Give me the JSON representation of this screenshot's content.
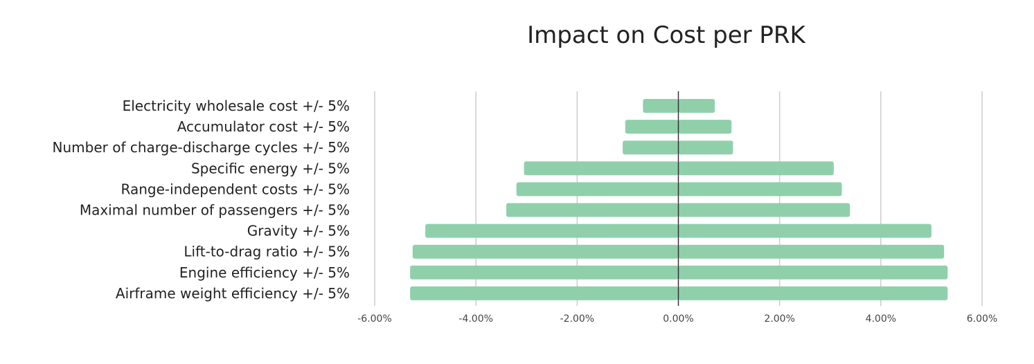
{
  "chart_data": {
    "type": "bar",
    "orientation": "horizontal",
    "title": "Impact on Cost per PRK",
    "xlabel": "",
    "ylabel": "",
    "xlim": [
      -6,
      6
    ],
    "x_ticks": [
      -6,
      -4,
      -2,
      0,
      2,
      4,
      6
    ],
    "x_tick_labels": [
      "-6.00%",
      "-4.00%",
      "-2.00%",
      "0.00%",
      "2.00%",
      "4.00%",
      "6.00%"
    ],
    "grid": true,
    "legend": "none",
    "categories": [
      "Electricity wholesale cost +/- 5%",
      "Accumulator cost +/- 5%",
      "Number of charge-discharge cycles +/- 5%",
      "Specific energy +/- 5%",
      "Range-independent costs +/- 5%",
      "Maximal number of passengers +/- 5%",
      "Gravity +/- 5%",
      "Lift-to-drag ratio +/- 5%",
      "Engine efficiency +/- 5%",
      "Airframe weight efficiency +/- 5%"
    ],
    "series": [
      {
        "name": "Low",
        "values": [
          -0.7,
          -1.05,
          -1.1,
          -3.05,
          -3.2,
          -3.4,
          -5.0,
          -5.25,
          -5.3,
          -5.3
        ]
      },
      {
        "name": "High",
        "values": [
          0.72,
          1.05,
          1.08,
          3.07,
          3.23,
          3.39,
          5.0,
          5.25,
          5.32,
          5.32
        ]
      }
    ],
    "colors": {
      "bar": "#8fd0ab"
    }
  }
}
